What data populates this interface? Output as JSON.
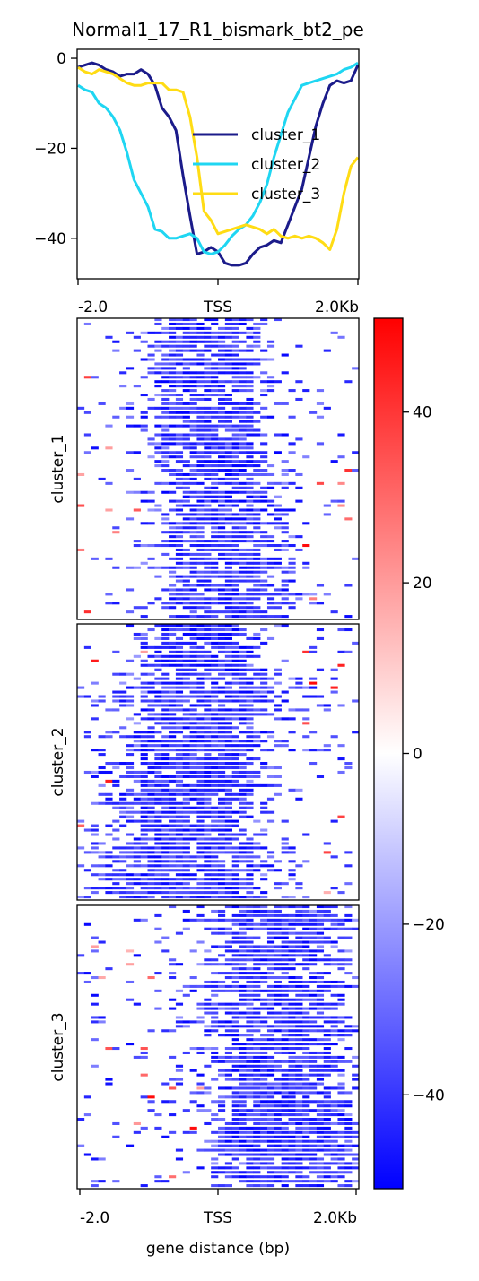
{
  "chart_data": [
    {
      "type": "line",
      "title": "Normal1_17_R1_bismark_bt2_pe",
      "xlabel": "",
      "ylabel": "",
      "xlim": [
        0,
        40
      ],
      "ylim": [
        -49,
        2
      ],
      "yticks": [
        0,
        -20,
        -40
      ],
      "ytick_labels": [
        "0",
        "−20",
        "−40"
      ],
      "xtick_labels": [
        "-2.0",
        "TSS",
        "2.0Kb"
      ],
      "legend_position": "center-right",
      "series": [
        {
          "name": "cluster_1",
          "color": "#1b1b8a",
          "values": [
            -2,
            -1.5,
            -1,
            -1.5,
            -2.5,
            -3,
            -4,
            -3.5,
            -3.5,
            -2.5,
            -3.5,
            -6,
            -11,
            -13,
            -16,
            -26,
            -35,
            -43.5,
            -43,
            -42,
            -43,
            -45.5,
            -46,
            -46,
            -45.5,
            -43.5,
            -42,
            -41.5,
            -40.5,
            -41,
            -37,
            -33,
            -29,
            -22,
            -15,
            -10,
            -6,
            -5,
            -5.5,
            -5,
            -1.5
          ]
        },
        {
          "name": "cluster_2",
          "color": "#1fd6f2",
          "values": [
            -6,
            -7,
            -7.5,
            -10,
            -11,
            -13,
            -16,
            -21,
            -27,
            -30,
            -33,
            -38,
            -38.5,
            -40,
            -40,
            -39.5,
            -39,
            -40,
            -43,
            -43.5,
            -43,
            -41.5,
            -39.5,
            -38,
            -37,
            -35,
            -32,
            -28,
            -22,
            -17,
            -12,
            -9,
            -6,
            -5.5,
            -5,
            -4.5,
            -4,
            -3.5,
            -2.5,
            -2,
            -1
          ]
        },
        {
          "name": "cluster_3",
          "color": "#ffdc14",
          "values": [
            -2,
            -3,
            -3.5,
            -2.5,
            -3,
            -3.5,
            -4.5,
            -5.5,
            -6,
            -6,
            -5.5,
            -5.5,
            -5.5,
            -7,
            -7,
            -7.5,
            -13,
            -22,
            -34,
            -36,
            -39,
            -38.5,
            -38,
            -37.5,
            -37,
            -37.5,
            -38,
            -39,
            -38,
            -39.5,
            -40,
            -39.5,
            -40,
            -39.5,
            -40,
            -41,
            -42.5,
            -38,
            -30,
            -24,
            -22
          ]
        }
      ]
    },
    {
      "type": "heatmap",
      "xtick_labels": [
        "-2.0",
        "TSS",
        "2.0Kb"
      ],
      "xlabel": "gene distance (bp)",
      "colorscale": [
        "#0000ff",
        "#ffffff",
        "#ff0000"
      ],
      "zlim": [
        -51,
        51
      ],
      "colorbar_ticks": [
        40,
        20,
        0,
        -20,
        -40
      ],
      "colorbar_tick_labels": [
        "40",
        "20",
        "0",
        "−20",
        "−40"
      ],
      "clusters": [
        {
          "label": "cluster_1",
          "rows": 68
        },
        {
          "label": "cluster_2",
          "rows": 62
        },
        {
          "label": "cluster_3",
          "rows": 64
        }
      ]
    }
  ]
}
